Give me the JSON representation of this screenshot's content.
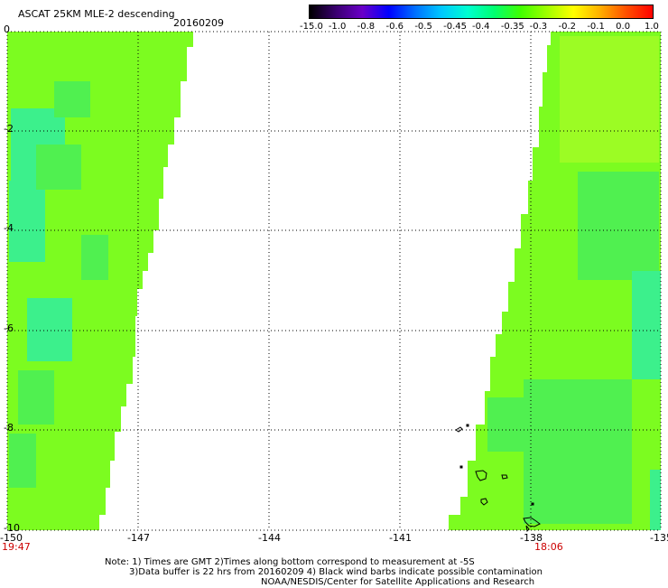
{
  "header": {
    "title": "ASCAT 25KM MLE-2 descending",
    "date": "20160209"
  },
  "colorbar": {
    "labels": [
      "-15.0",
      "-1.0",
      "-0.8",
      "-0.6",
      "-0.5",
      "-0.45",
      "-0.4",
      "-0.35",
      "-0.3",
      "-0.2",
      "-0.1",
      "0.0",
      "1.0"
    ],
    "colors": [
      "#000000",
      "#3a0070",
      "#6a00c8",
      "#0000ff",
      "#0070ff",
      "#00c8ff",
      "#00ffd0",
      "#00ff70",
      "#40ff00",
      "#a0ff00",
      "#ffff00",
      "#ffb000",
      "#ff5000",
      "#ff0000"
    ]
  },
  "map": {
    "x_ticks": [
      "-150",
      "-147",
      "-144",
      "-141",
      "-138",
      "-135"
    ],
    "y_ticks": [
      "0",
      "-2",
      "-4",
      "-6",
      "-8",
      "-10"
    ],
    "time_left": "19:47",
    "time_right": "18:06",
    "swath_colors": {
      "base": "#7cfc20",
      "cyan": "#3cf08c",
      "green": "#50f050",
      "lime": "#9cfc24"
    }
  },
  "notes": [
    "Note: 1) Times are GMT 2)Times along bottom correspond to measurement at -5S",
    "3)Data buffer is 22 hrs from 20160209 4) Black wind barbs indicate possible contamination",
    "NOAA/NESDIS/Center for Satellite Applications and Research"
  ]
}
